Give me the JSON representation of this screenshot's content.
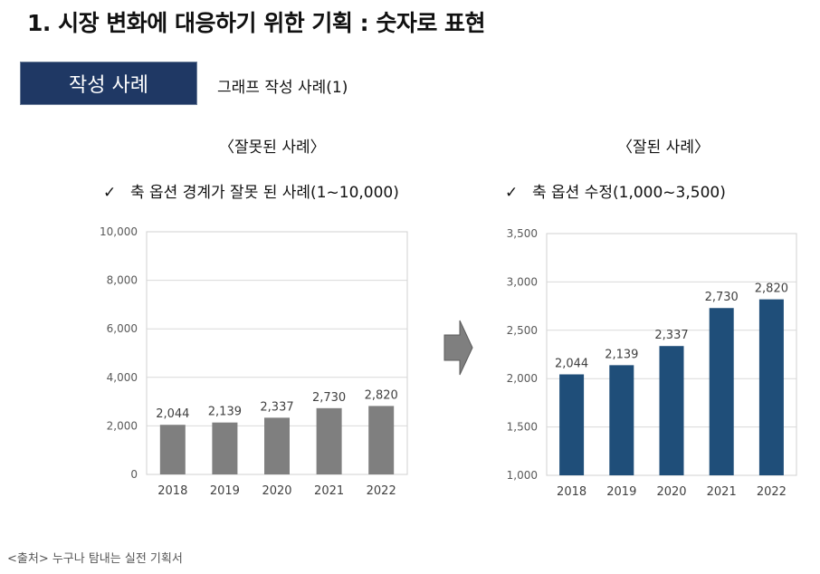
{
  "page": {
    "title": "1. 시장 변화에 대응하기 위한 기획 : 숫자로 표현",
    "badge_label": "작성 사례",
    "subtitle": "그래프 작성 사례(1)",
    "source": "<출처> 누구나 탐내는 실전 기획서",
    "check_glyph": "✓"
  },
  "sections": {
    "bad": {
      "heading": "〈잘못된 사례〉",
      "note": "축 옵션 경계가 잘못 된 사례(1~10,000)"
    },
    "good": {
      "heading": "〈잘된 사례〉",
      "note": "축 옵션 수정(1,000~3,500)"
    }
  },
  "chart_data": [
    {
      "type": "bar",
      "title": "",
      "xlabel": "",
      "ylabel": "",
      "categories": [
        "2018",
        "2019",
        "2020",
        "2021",
        "2022"
      ],
      "values": [
        2044,
        2139,
        2337,
        2730,
        2820
      ],
      "value_labels": [
        "2,044",
        "2,139",
        "2,337",
        "2,730",
        "2,820"
      ],
      "ylim": [
        0,
        10000
      ],
      "yticks": [
        0,
        2000,
        4000,
        6000,
        8000,
        10000
      ],
      "ytick_labels": [
        "0",
        "2,000",
        "4,000",
        "6,000",
        "8,000",
        "10,000"
      ],
      "grid": true,
      "color": "#7f7f7f"
    },
    {
      "type": "bar",
      "title": "",
      "xlabel": "",
      "ylabel": "",
      "categories": [
        "2018",
        "2019",
        "2020",
        "2021",
        "2022"
      ],
      "values": [
        2044,
        2139,
        2337,
        2730,
        2820
      ],
      "value_labels": [
        "2,044",
        "2,139",
        "2,337",
        "2,730",
        "2,820"
      ],
      "ylim": [
        1000,
        3500
      ],
      "yticks": [
        1000,
        1500,
        2000,
        2500,
        3000,
        3500
      ],
      "ytick_labels": [
        "1,000",
        "1,500",
        "2,000",
        "2,500",
        "3,000",
        "3,500"
      ],
      "grid": true,
      "color": "#1f4e79"
    }
  ],
  "colors": {
    "badge_bg": "#1f3864",
    "arrow": "#7f7f7f"
  }
}
